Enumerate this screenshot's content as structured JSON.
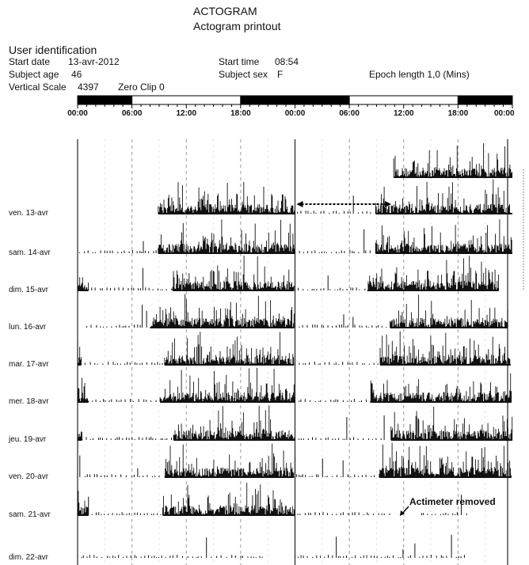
{
  "header": {
    "title": "ACTOGRAM",
    "subtitle": "Actogram printout"
  },
  "user": {
    "heading": "User identification",
    "start_date_label": "Start date",
    "start_date": "13-avr-2012",
    "start_time_label": "Start time",
    "start_time": "08:54",
    "age_label": "Subject age",
    "age": "46",
    "sex_label": "Subject sex",
    "sex": "F",
    "vscale_label": "Vertical Scale",
    "vscale": "4397",
    "zeroclip_label": "Zero Clip",
    "zeroclip": "0",
    "epoch_label": "Epoch length",
    "epoch": "1,0 (Mins)"
  },
  "chart_data": {
    "type": "bar",
    "title": "ACTOGRAM",
    "plot": "double-plotted actogram (48 h per row)",
    "x_ticks": [
      "00:00",
      "06:00",
      "12:00",
      "18:00",
      "00:00",
      "06:00",
      "12:00",
      "18:00",
      "00:00"
    ],
    "xlim_hours": [
      0,
      48
    ],
    "light_dark_bar": [
      {
        "from": 0,
        "to": 6,
        "state": "dark"
      },
      {
        "from": 6,
        "to": 18,
        "state": "light"
      },
      {
        "from": 18,
        "to": 30,
        "state": "dark"
      },
      {
        "from": 30,
        "to": 42,
        "state": "light"
      },
      {
        "from": 42,
        "to": 48,
        "state": "dark"
      }
    ],
    "colors": {
      "dark": "#000000",
      "light": "#ffffff",
      "bars": "#111111"
    },
    "rows": [
      {
        "label": "",
        "active": [
          [
            34.9,
            48
          ]
        ],
        "sparse": []
      },
      {
        "label": "ven. 13-avr",
        "active": [
          [
            8.9,
            24
          ],
          [
            32.9,
            48
          ]
        ],
        "sparse": [
          [
            24,
            32.5
          ]
        ]
      },
      {
        "label": "sam. 14-avr",
        "active": [
          [
            8.9,
            24
          ],
          [
            32.9,
            48
          ]
        ],
        "sparse": [
          [
            0.2,
            8.7
          ],
          [
            24,
            32.5
          ]
        ]
      },
      {
        "label": "dim. 15-avr",
        "active": [
          [
            0,
            1.2
          ],
          [
            10.5,
            23.9
          ],
          [
            32,
            46.5
          ]
        ],
        "sparse": [
          [
            1.2,
            10.4
          ],
          [
            24,
            31.8
          ]
        ]
      },
      {
        "label": "lun. 16-avr",
        "active": [
          [
            8.0,
            23.9
          ],
          [
            34.5,
            47.5
          ]
        ],
        "sparse": [
          [
            1,
            8
          ],
          [
            24,
            34.3
          ]
        ]
      },
      {
        "label": "mar. 17-avr",
        "active": [
          [
            0,
            0.4
          ],
          [
            9.6,
            23.9
          ],
          [
            33.4,
            47.8
          ]
        ],
        "sparse": [
          [
            0.4,
            9.5
          ],
          [
            24,
            33.2
          ]
        ]
      },
      {
        "label": "mer. 18-avr",
        "active": [
          [
            0,
            1.2
          ],
          [
            9.1,
            24
          ],
          [
            32.3,
            47.9
          ]
        ],
        "sparse": [
          [
            1.2,
            9
          ],
          [
            24,
            32
          ]
        ]
      },
      {
        "label": "jeu. 19-avr",
        "active": [
          [
            0,
            0.5
          ],
          [
            10.6,
            24
          ],
          [
            34.6,
            48
          ]
        ],
        "sparse": [
          [
            0.5,
            10.5
          ],
          [
            24,
            34.4
          ]
        ]
      },
      {
        "label": "ven. 20-avr",
        "active": [
          [
            9.6,
            23.9
          ],
          [
            33.3,
            47.9
          ]
        ],
        "sparse": [
          [
            0,
            9.5
          ],
          [
            24,
            33
          ]
        ]
      },
      {
        "label": "sam. 21-avr",
        "active": [
          [
            0,
            1.2
          ],
          [
            9.4,
            24
          ]
        ],
        "sparse": [
          [
            1.2,
            9.3
          ],
          [
            24,
            34.5
          ],
          [
            38,
            43
          ]
        ]
      },
      {
        "label": "dim. 22-avr",
        "active": [],
        "sparse": [
          [
            0,
            20.5
          ],
          [
            24,
            43
          ]
        ]
      }
    ],
    "annotations": [
      {
        "text": "Actimeter removed",
        "row": "sam. 21-avr",
        "at_hour": 34.6
      },
      {
        "type": "double-arrow",
        "row": "ven. 13-avr",
        "from_hour": 24,
        "to_hour": 34.8
      }
    ]
  }
}
